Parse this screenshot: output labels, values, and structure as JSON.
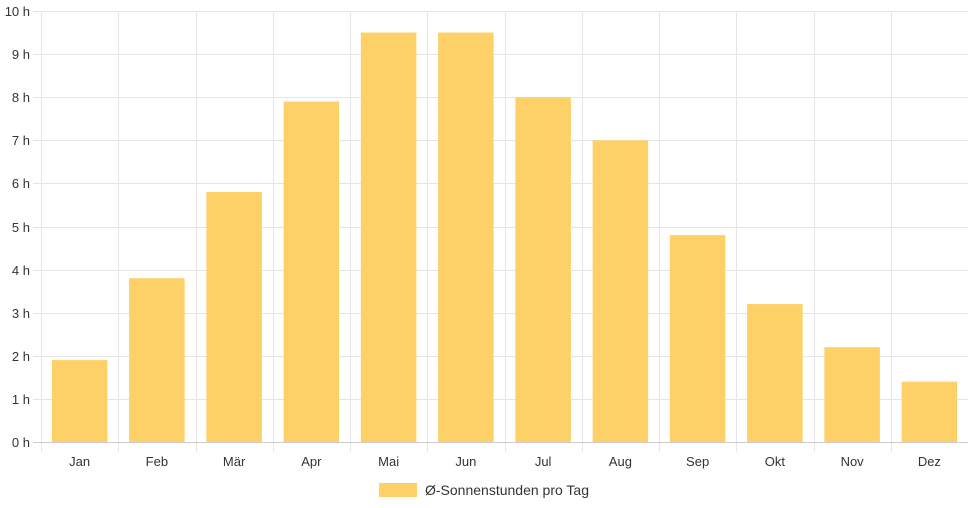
{
  "chart_data": {
    "type": "bar",
    "categories": [
      "Jan",
      "Feb",
      "Mär",
      "Apr",
      "Mai",
      "Jun",
      "Jul",
      "Aug",
      "Sep",
      "Okt",
      "Nov",
      "Dez"
    ],
    "series": [
      {
        "name": "Ø-Sonnenstunden pro Tag",
        "values": [
          1.9,
          3.8,
          5.8,
          7.9,
          9.5,
          9.5,
          8.0,
          7.0,
          4.8,
          3.2,
          2.2,
          1.4
        ],
        "color": "#fdd168"
      }
    ],
    "ylim": [
      0,
      10
    ],
    "y_tick_step": 1,
    "y_tick_suffix": " h",
    "grid": true,
    "legend_position": "bottom"
  }
}
